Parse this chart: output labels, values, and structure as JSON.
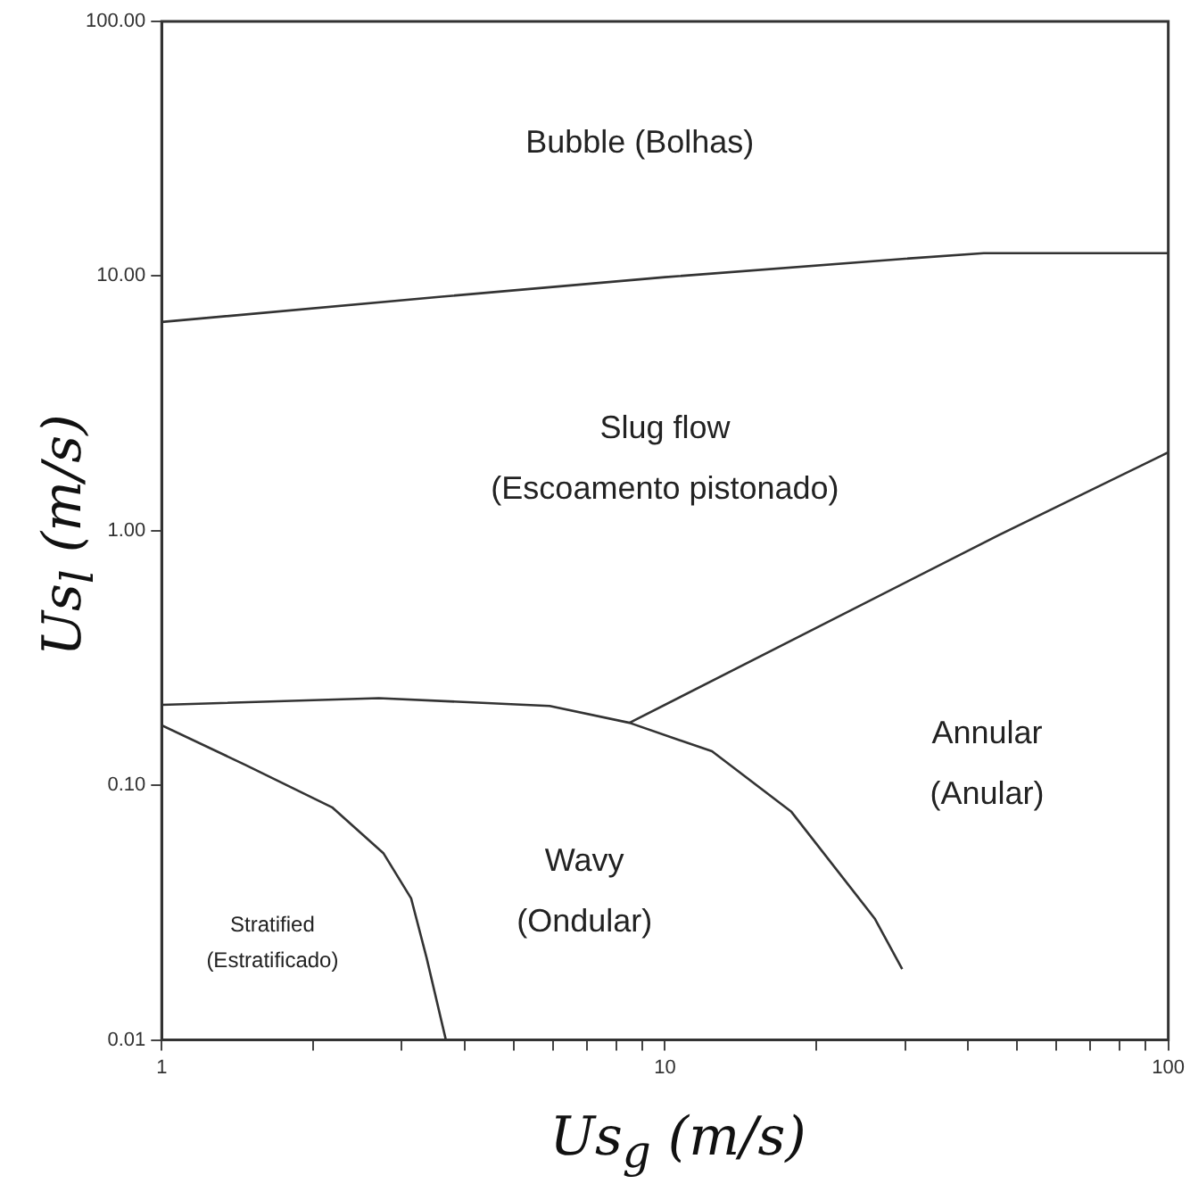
{
  "chart_data": {
    "type": "line",
    "xlabel": "Us$_{g}$ (m/s)",
    "ylabel": "Us$_{l}$ (m/s)",
    "log": "xy",
    "grid": false,
    "legend": false,
    "marker": "none",
    "line_style": "solid",
    "xlim": [
      1,
      100
    ],
    "ylim": [
      0.01,
      100
    ],
    "xticks": [
      1,
      {
        "value": 2,
        "label": null
      },
      {
        "value": 3,
        "label": null
      },
      {
        "value": 4,
        "label": null
      },
      {
        "value": 5,
        "label": null
      },
      {
        "value": 6,
        "label": null
      },
      {
        "value": 7,
        "label": null
      },
      {
        "value": 8,
        "label": null
      },
      {
        "value": 9,
        "label": null
      },
      10,
      {
        "value": 20,
        "label": null
      },
      {
        "value": 30,
        "label": null
      },
      {
        "value": 40,
        "label": null
      },
      {
        "value": 50,
        "label": null
      },
      {
        "value": 60,
        "label": null
      },
      {
        "value": 70,
        "label": null
      },
      {
        "value": 80,
        "label": null
      },
      {
        "value": 90,
        "label": null
      },
      100
    ],
    "yticks": [
      {
        "value": 0.01,
        "label": "0.01"
      },
      {
        "value": 0.1,
        "label": "0.10"
      },
      {
        "value": 1,
        "label": "1.00"
      },
      {
        "value": 10,
        "label": "10.00"
      },
      {
        "value": 100,
        "label": "100.00"
      }
    ],
    "series": [
      {
        "color": "#333333",
        "x": [
          1,
          3.6,
          10,
          30,
          43,
          100
        ],
        "values": [
          6.6,
          8.3,
          9.9,
          11.7,
          12.3,
          12.3
        ]
      },
      {
        "color": "#333333",
        "x": [
          8.5,
          46,
          100
        ],
        "values": [
          0.176,
          0.96,
          2.03
        ]
      },
      {
        "color": "#333333",
        "x": [
          1,
          2.7,
          5.9,
          8.5,
          12.4,
          17.8,
          26.1,
          29.6
        ],
        "values": [
          0.207,
          0.22,
          0.205,
          0.176,
          0.136,
          0.079,
          0.03,
          0.019
        ]
      },
      {
        "color": "#333333",
        "x": [
          1,
          1.47,
          2.18,
          2.76,
          3.13,
          3.36,
          3.67
        ],
        "values": [
          0.172,
          0.12,
          0.082,
          0.054,
          0.036,
          0.021,
          0.01
        ]
      }
    ],
    "annotations": [
      "Bubble (Bolhas)",
      "Slug flow\n(Escoamento pistonado)",
      "Annular\n(Anular)",
      "Wavy\n(Ondular)",
      "Stratified\n(Estratificado)"
    ]
  }
}
